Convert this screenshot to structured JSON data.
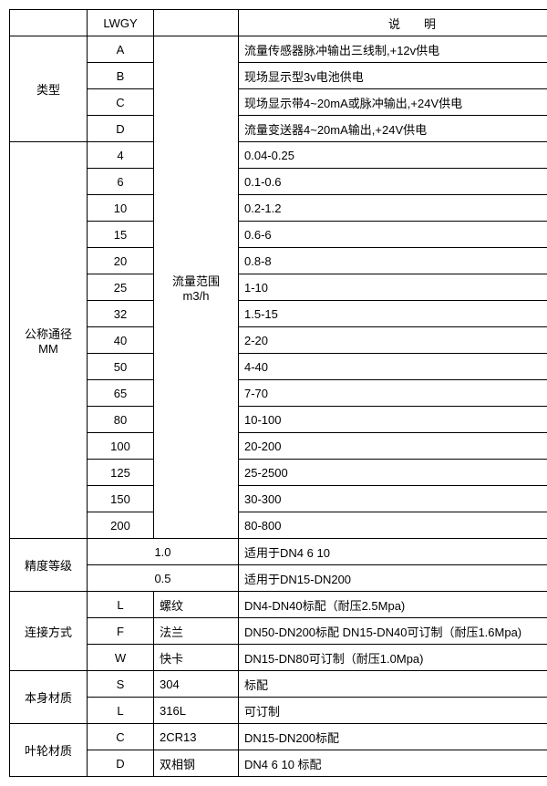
{
  "h": {
    "c1": "",
    "c2": "LWGY",
    "c3": "",
    "c4": "说　　明"
  },
  "type": {
    "label": "类型",
    "rows": [
      {
        "code": "A",
        "desc": "流量传感器脉冲输出三线制,+12v供电"
      },
      {
        "code": "B",
        "desc": "现场显示型3v电池供电"
      },
      {
        "code": "C",
        "desc": "现场显示带4~20mA或脉冲输出,+24V供电"
      },
      {
        "code": "D",
        "desc": "流量变送器4~20mA输出,+24V供电"
      }
    ]
  },
  "dn": {
    "label_l1": "公称通径",
    "label_l2": "MM",
    "range_l1": "流量范围",
    "range_l2": "m3/h",
    "rows": [
      {
        "size": "4",
        "val": "0.04-0.25"
      },
      {
        "size": "6",
        "val": "0.1-0.6"
      },
      {
        "size": "10",
        "val": "0.2-1.2"
      },
      {
        "size": "15",
        "val": "0.6-6"
      },
      {
        "size": "20",
        "val": "0.8-8"
      },
      {
        "size": "25",
        "val": "1-10"
      },
      {
        "size": "32",
        "val": "1.5-15"
      },
      {
        "size": "40",
        "val": "2-20"
      },
      {
        "size": "50",
        "val": "4-40"
      },
      {
        "size": "65",
        "val": "7-70"
      },
      {
        "size": "80",
        "val": "10-100"
      },
      {
        "size": "100",
        "val": "20-200"
      },
      {
        "size": "125",
        "val": "25-2500"
      },
      {
        "size": "150",
        "val": "30-300"
      },
      {
        "size": "200",
        "val": "80-800"
      }
    ]
  },
  "acc": {
    "label": "精度等级",
    "rows": [
      {
        "grade": "1.0",
        "desc": "适用于DN4  6  10"
      },
      {
        "grade": "0.5",
        "desc": "适用于DN15-DN200"
      }
    ]
  },
  "conn": {
    "label": "连接方式",
    "rows": [
      {
        "code": "L",
        "name": "螺纹",
        "desc": "DN4-DN40标配（耐压2.5Mpa)"
      },
      {
        "code": "F",
        "name": "法兰",
        "desc": "DN50-DN200标配 DN15-DN40可订制（耐压1.6Mpa)"
      },
      {
        "code": "W",
        "name": "快卡",
        "desc": "DN15-DN80可订制（耐压1.0Mpa)"
      }
    ]
  },
  "body": {
    "label": "本身材质",
    "rows": [
      {
        "code": "S",
        "name": "304",
        "desc": "标配"
      },
      {
        "code": "L",
        "name": "316L",
        "desc": "可订制"
      }
    ]
  },
  "imp": {
    "label": "叶轮材质",
    "rows": [
      {
        "code": "C",
        "name": "2CR13",
        "desc": "DN15-DN200标配"
      },
      {
        "code": "D",
        "name": "双相钢",
        "desc": "DN4 6 10 标配"
      }
    ]
  }
}
